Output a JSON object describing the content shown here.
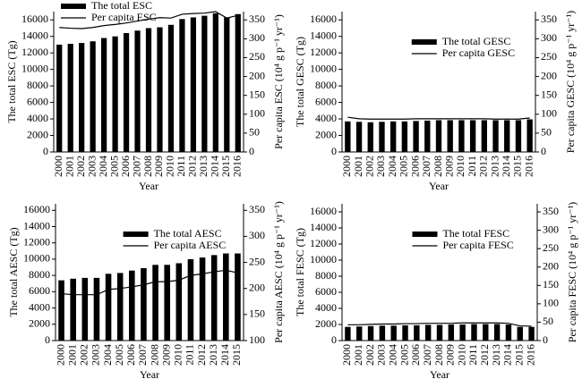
{
  "chart_data": [
    {
      "type": "bar",
      "legend": "upper left",
      "xlabel": "Year",
      "ylabel": "The total ESC (Tg)",
      "y2label": "Per capita ESC (10⁴ g p⁻¹ yr⁻¹)",
      "categories": [
        "2000",
        "2001",
        "2002",
        "2003",
        "2004",
        "2005",
        "2006",
        "2007",
        "2008",
        "2009",
        "2010",
        "2011",
        "2012",
        "2013",
        "2014",
        "2015",
        "2016"
      ],
      "series": [
        {
          "name": "The total ESC",
          "type": "bar",
          "color": "#000000",
          "values": [
            13000,
            13100,
            13200,
            13400,
            13800,
            14000,
            14400,
            14700,
            15000,
            15100,
            15400,
            16100,
            16300,
            16500,
            16800,
            16300,
            16700
          ]
        },
        {
          "name": "Per capita ESC",
          "type": "line",
          "axis": "y2",
          "color": "#000000",
          "values": [
            330,
            328,
            327,
            330,
            335,
            338,
            342,
            347,
            352,
            356,
            355,
            365,
            367,
            368,
            372,
            355,
            362
          ]
        }
      ],
      "ylim": [
        0,
        17000
      ],
      "yticks": [
        0,
        2000,
        4000,
        6000,
        8000,
        10000,
        12000,
        14000,
        16000
      ],
      "y2lim": [
        0,
        372
      ],
      "y2ticks": [
        0,
        50,
        100,
        150,
        200,
        250,
        300,
        350
      ]
    },
    {
      "type": "bar",
      "legend": "upper center",
      "xlabel": "Year",
      "ylabel": "The total GESC (Tg)",
      "y2label": "Per capita GESC (10⁴ g p⁻¹ yr⁻¹)",
      "categories": [
        "2000",
        "2001",
        "2002",
        "2003",
        "2004",
        "2005",
        "2006",
        "2007",
        "2008",
        "2009",
        "2010",
        "2011",
        "2012",
        "2013",
        "2014",
        "2015",
        "2016"
      ],
      "series": [
        {
          "name": "The total GESC",
          "type": "bar",
          "color": "#000000",
          "values": [
            3700,
            3650,
            3600,
            3650,
            3700,
            3700,
            3750,
            3800,
            3850,
            3850,
            3850,
            3850,
            3850,
            3850,
            3850,
            3850,
            3950
          ]
        },
        {
          "name": "Per capita GESC",
          "type": "line",
          "axis": "y2",
          "color": "#000000",
          "values": [
            92,
            88,
            87,
            87,
            87,
            87,
            88,
            88,
            88,
            88,
            88,
            88,
            88,
            87,
            87,
            87,
            90
          ]
        }
      ],
      "ylim": [
        0,
        17000
      ],
      "yticks": [
        0,
        2000,
        4000,
        6000,
        8000,
        10000,
        12000,
        14000,
        16000
      ],
      "y2lim": [
        0,
        372
      ],
      "y2ticks": [
        0,
        50,
        100,
        150,
        200,
        250,
        300,
        350
      ]
    },
    {
      "type": "bar",
      "legend": "upper center",
      "xlabel": "Year",
      "ylabel": "The total AESC (Tg)",
      "y2label": "Per capita AESC (10⁴ g p⁻¹ yr⁻¹)",
      "categories": [
        "2000",
        "2001",
        "2002",
        "2003",
        "2004",
        "2005",
        "2006",
        "2007",
        "2008",
        "2009",
        "2010",
        "2011",
        "2012",
        "2013",
        "2014",
        "2015"
      ],
      "series": [
        {
          "name": "The total AESC",
          "type": "bar",
          "color": "#000000",
          "values": [
            7400,
            7600,
            7700,
            7700,
            8200,
            8300,
            8600,
            8900,
            9300,
            9300,
            9500,
            10000,
            10200,
            10500,
            10700,
            10700
          ]
        },
        {
          "name": "Per capita AESC",
          "type": "line",
          "axis": "y2",
          "color": "#000000",
          "values": [
            190,
            188,
            188,
            188,
            198,
            200,
            203,
            207,
            213,
            213,
            216,
            225,
            228,
            232,
            235,
            230
          ]
        }
      ],
      "ylim": [
        0,
        16800
      ],
      "yticks": [
        0,
        2000,
        4000,
        6000,
        8000,
        10000,
        12000,
        14000,
        16000
      ],
      "y2lim": [
        100,
        362.5
      ],
      "y2ticks": [
        100,
        150,
        200,
        250,
        300,
        350
      ]
    },
    {
      "type": "bar",
      "legend": "upper center",
      "xlabel": "Year",
      "ylabel": "The total FESC (Tg)",
      "y2label": "Per capita FESC (10⁴ g p⁻¹ yr⁻¹)",
      "categories": [
        "2000",
        "2001",
        "2002",
        "2003",
        "2004",
        "2005",
        "2006",
        "2007",
        "2008",
        "2009",
        "2010",
        "2011",
        "2012",
        "2013",
        "2014",
        "2015",
        "2016"
      ],
      "series": [
        {
          "name": "The total FESC",
          "type": "bar",
          "color": "#000000",
          "values": [
            1700,
            1750,
            1800,
            1850,
            1850,
            1900,
            1900,
            1950,
            1950,
            2000,
            2000,
            2050,
            2050,
            2050,
            2000,
            1700,
            1700
          ]
        },
        {
          "name": "Per capita FESC",
          "type": "line",
          "axis": "y2",
          "color": "#000000",
          "values": [
            43,
            43,
            44,
            45,
            45,
            46,
            46,
            47,
            47,
            47,
            48,
            48,
            48,
            48,
            47,
            40,
            39
          ]
        }
      ],
      "ylim": [
        0,
        17000
      ],
      "yticks": [
        0,
        2000,
        4000,
        6000,
        8000,
        10000,
        12000,
        14000,
        16000
      ],
      "y2lim": [
        0,
        372
      ],
      "y2ticks": [
        0,
        50,
        100,
        150,
        200,
        250,
        300,
        350
      ]
    }
  ]
}
